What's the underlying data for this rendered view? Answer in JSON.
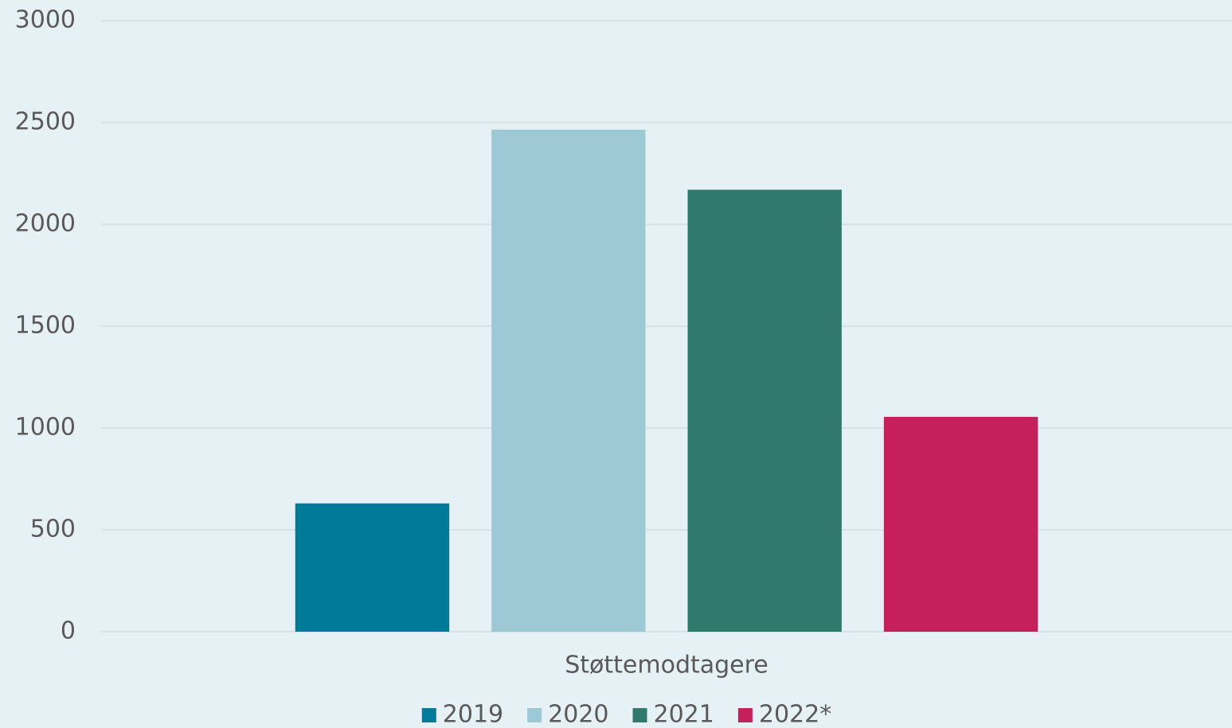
{
  "chart_data": {
    "type": "bar",
    "categories": [
      "Støttemodtagere"
    ],
    "series": [
      {
        "name": "2019",
        "color": "#007a99",
        "values": [
          630
        ]
      },
      {
        "name": "2020",
        "color": "#9dc9d5",
        "values": [
          2465
        ]
      },
      {
        "name": "2021",
        "color": "#32796d",
        "values": [
          2170
        ]
      },
      {
        "name": "2022*",
        "color": "#c4205a",
        "values": [
          1055
        ]
      }
    ],
    "ylim": [
      0,
      3000
    ],
    "yticks": [
      0,
      500,
      1000,
      1500,
      2000,
      2500,
      3000
    ],
    "grid": true,
    "legend": "bottom"
  }
}
